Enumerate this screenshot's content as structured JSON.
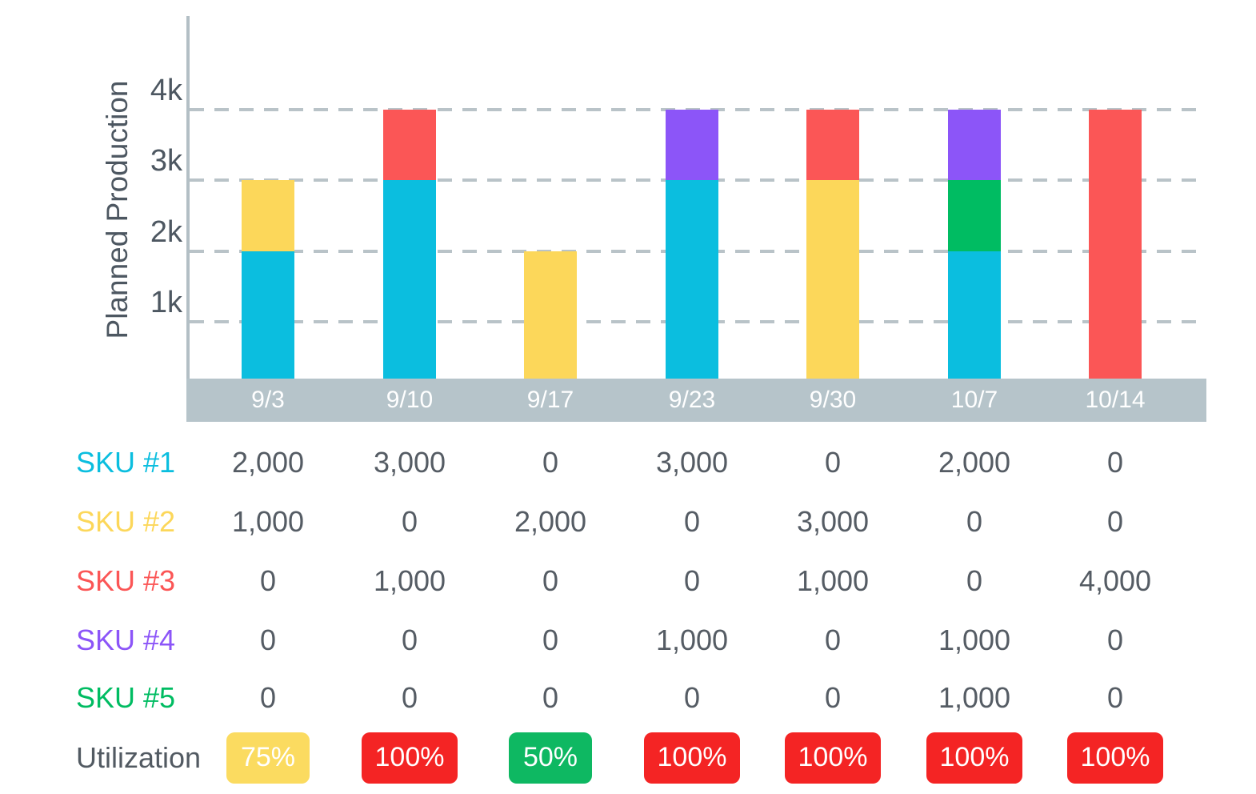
{
  "page": {
    "background": "#ffffff"
  },
  "chart_data": {
    "type": "bar",
    "stacked": true,
    "title": "",
    "ylabel": "Planned Production",
    "xlabel": "",
    "ylim": [
      0,
      4500
    ],
    "grid": "horizontal-dashed",
    "legend_position": "none",
    "y_ticks": [
      {
        "label": "4k",
        "value": 4000
      },
      {
        "label": "3k",
        "value": 3000
      },
      {
        "label": "2k",
        "value": 2000
      },
      {
        "label": "1k",
        "value": 1000
      }
    ],
    "categories": [
      "9/3",
      "9/10",
      "9/17",
      "9/23",
      "9/30",
      "10/7",
      "10/14"
    ],
    "series": [
      {
        "name": "SKU #1",
        "color": "#0bbedf",
        "values": [
          2000,
          3000,
          0,
          3000,
          0,
          2000,
          0
        ]
      },
      {
        "name": "SKU #2",
        "color": "#fcd75a",
        "values": [
          1000,
          0,
          2000,
          0,
          3000,
          0,
          0
        ]
      },
      {
        "name": "SKU #3",
        "color": "#fb5656",
        "values": [
          0,
          1000,
          0,
          0,
          1000,
          0,
          4000
        ]
      },
      {
        "name": "SKU #4",
        "color": "#8c55f8",
        "values": [
          0,
          0,
          0,
          1000,
          0,
          1000,
          0
        ]
      },
      {
        "name": "SKU #5",
        "color": "#00bc62",
        "values": [
          0,
          0,
          0,
          0,
          0,
          1000,
          0
        ]
      }
    ],
    "stack_order": [
      "SKU #1",
      "SKU #2",
      "SKU #3",
      "SKU #5",
      "SKU #4"
    ],
    "axis_colors": {
      "axis_line": "#b3bfc5",
      "gridline": "#b9c3c8",
      "x_band": "#b6c4ca",
      "tick_text": "#4d5761",
      "date_text": "#ffffff"
    }
  },
  "table": {
    "rows": [
      {
        "label": "SKU #1",
        "color": "#0bbedf",
        "values": [
          "2,000",
          "3,000",
          "0",
          "3,000",
          "0",
          "2,000",
          "0"
        ]
      },
      {
        "label": "SKU #2",
        "color": "#fcd75a",
        "values": [
          "1,000",
          "0",
          "2,000",
          "0",
          "3,000",
          "0",
          "0"
        ]
      },
      {
        "label": "SKU #3",
        "color": "#fb5656",
        "values": [
          "0",
          "1,000",
          "0",
          "0",
          "1,000",
          "0",
          "4,000"
        ]
      },
      {
        "label": "SKU #4",
        "color": "#8c55f8",
        "values": [
          "0",
          "0",
          "0",
          "1,000",
          "0",
          "1,000",
          "0"
        ]
      },
      {
        "label": "SKU #5",
        "color": "#00bc62",
        "values": [
          "0",
          "0",
          "0",
          "0",
          "0",
          "1,000",
          "0"
        ]
      },
      {
        "label": "Utilization",
        "color": "#525a62",
        "badges": [
          {
            "text": "75%",
            "color": "#fbdb60"
          },
          {
            "text": "100%",
            "color": "#f42424"
          },
          {
            "text": "50%",
            "color": "#0eb862"
          },
          {
            "text": "100%",
            "color": "#f42424"
          },
          {
            "text": "100%",
            "color": "#f42424"
          },
          {
            "text": "100%",
            "color": "#f42424"
          },
          {
            "text": "100%",
            "color": "#f42424"
          }
        ]
      }
    ]
  }
}
